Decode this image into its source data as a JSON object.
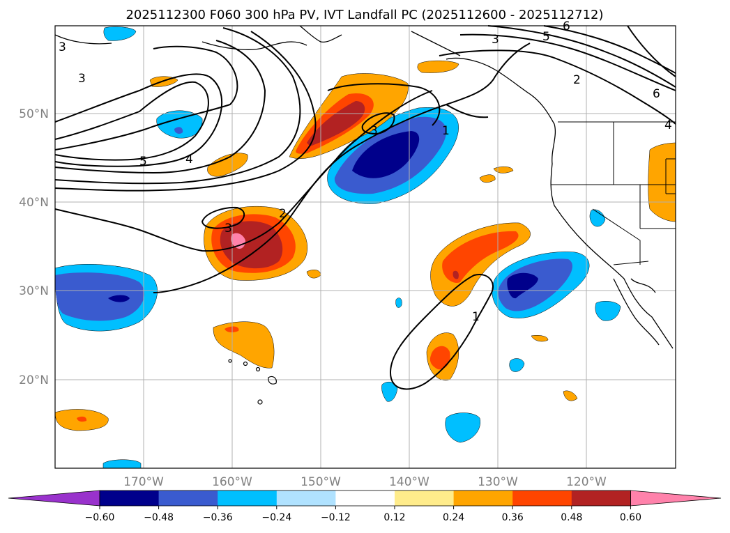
{
  "title": "2025112300 F060 300 hPa PV, IVT Landfall PC (2025112600 - 2025112712)",
  "map": {
    "lat_labels": [
      "50°N",
      "40°N",
      "30°N",
      "20°N"
    ],
    "lon_labels": [
      "170°W",
      "160°W",
      "150°W",
      "140°W",
      "130°W",
      "120°W"
    ],
    "lat_values": [
      50,
      40,
      30,
      20
    ],
    "lon_values": [
      -170,
      -160,
      -150,
      -140,
      -130,
      -120
    ],
    "extent": {
      "lon_min": -180,
      "lon_max": -110,
      "lat_min": 10,
      "lat_max": 60
    },
    "pv_contour_labels": [
      "3",
      "5",
      "4",
      "3",
      "2",
      "3",
      "1",
      "1",
      "3",
      "5",
      "6",
      "2",
      "6",
      "4"
    ]
  },
  "colorbar": {
    "tick_labels": [
      "-0.60",
      "-0.48",
      "-0.36",
      "-0.24",
      "-0.12",
      "0.12",
      "0.24",
      "0.36",
      "0.48",
      "0.60"
    ],
    "colors": [
      "#9932cc",
      "#00008b",
      "#3a5bcf",
      "#00bfff",
      "#b0e2ff",
      "#ffffff",
      "#ffec8b",
      "#ffa500",
      "#ff4500",
      "#b22222",
      "#ff82ab"
    ]
  }
}
